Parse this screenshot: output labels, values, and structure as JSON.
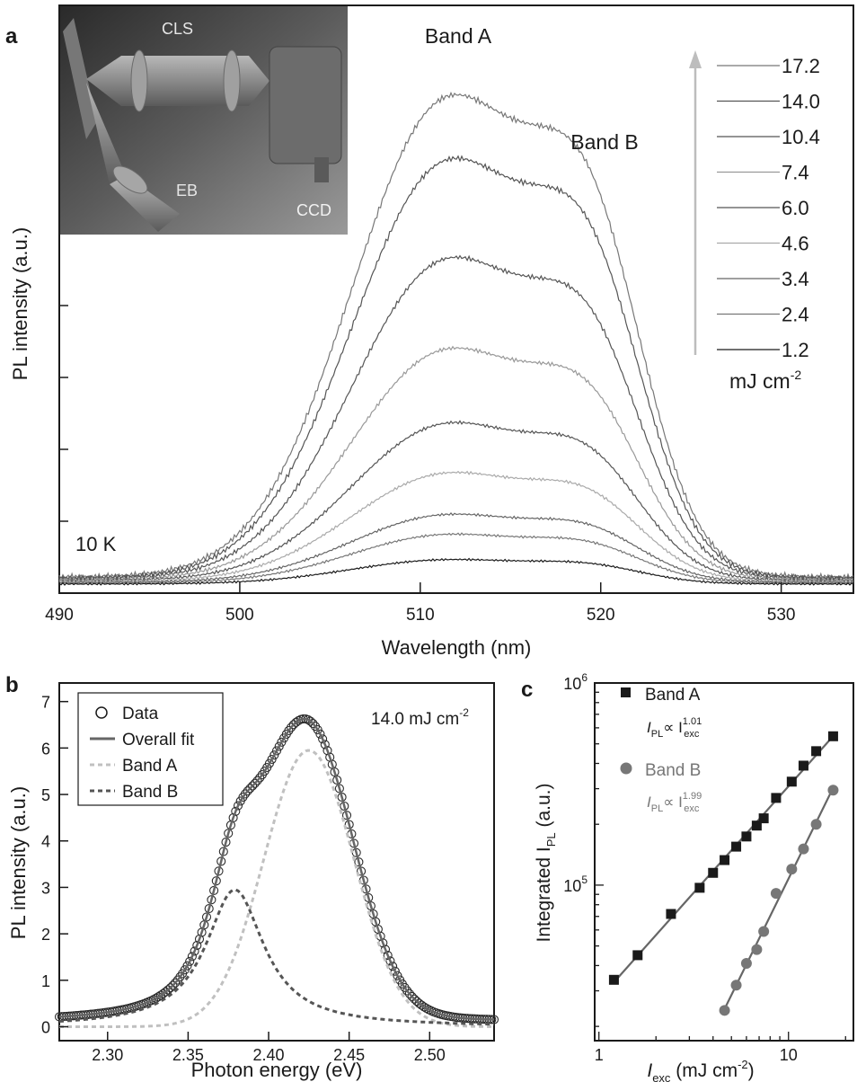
{
  "chart_data": [
    {
      "panel": "a",
      "type": "line",
      "xlabel": "Wavelength (nm)",
      "ylabel": "PL intensity (a.u.)",
      "xlim": [
        490,
        534
      ],
      "xticks": [
        490,
        500,
        510,
        520,
        530
      ],
      "temperature_label": "10 K",
      "band_labels": [
        "Band A",
        "Band B"
      ],
      "legend_unit": "mJ cm",
      "legend_unit_sup": "-2",
      "series": [
        {
          "name": "17.2",
          "peak": 0.91,
          "color": "#777777"
        },
        {
          "name": "14.0",
          "peak": 0.795,
          "color": "#555555"
        },
        {
          "name": "10.4",
          "peak": 0.615,
          "color": "#555555"
        },
        {
          "name": "7.4",
          "peak": 0.45,
          "color": "#999999"
        },
        {
          "name": "6.0",
          "peak": 0.315,
          "color": "#555555"
        },
        {
          "name": "4.6",
          "peak": 0.225,
          "color": "#aaaaaa"
        },
        {
          "name": "3.4",
          "peak": 0.15,
          "color": "#666666"
        },
        {
          "name": "2.4",
          "peak": 0.115,
          "color": "#777777"
        },
        {
          "name": "1.2",
          "peak": 0.07,
          "color": "#1a1a1a"
        }
      ],
      "inset_labels": [
        "CLS",
        "EB",
        "CCD"
      ]
    },
    {
      "panel": "b",
      "type": "line",
      "annotation": "14.0 mJ cm",
      "annotation_sup": "-2",
      "xlabel": "Photon energy (eV)",
      "ylabel": "PL intensity (a.u.)",
      "xlim": [
        2.27,
        2.54
      ],
      "ylim": [
        -0.3,
        7.4
      ],
      "xticks": [
        "2.30",
        "2.35",
        "2.40",
        "2.45",
        "2.50"
      ],
      "yticks": [
        "0",
        "1",
        "2",
        "3",
        "4",
        "5",
        "6",
        "7"
      ],
      "legend": [
        "Data",
        "Overall fit",
        "Band A",
        "Band B"
      ],
      "band_a": {
        "center": 2.425,
        "sigma": 0.028,
        "amplitude": 5.95
      },
      "band_b": {
        "center": 2.379,
        "gamma": 0.022,
        "amplitude": 2.95
      }
    },
    {
      "panel": "c",
      "type": "scatter",
      "xlabel": "I",
      "xlabel_sub": "exc",
      "xlabel_rest": " (mJ cm",
      "xlabel_sup": "-2",
      "xlabel_close": ")",
      "ylabel": "Integrated I",
      "ylabel_sub": "PL",
      "ylabel_rest": " (a.u.)",
      "xscale": "log",
      "yscale": "log",
      "xlim": [
        0.95,
        22
      ],
      "ylim": [
        17000,
        1000000
      ],
      "xtick_labels": [
        {
          "value": 1,
          "label": "1"
        },
        {
          "value": 10,
          "label": "10"
        }
      ],
      "ytick_labels": [
        {
          "value": 100000,
          "base": "10",
          "exp": "5"
        },
        {
          "value": 1000000,
          "base": "10",
          "exp": "6"
        }
      ],
      "series": [
        {
          "name": "Band A",
          "marker": "square",
          "color": "#1a1a1a",
          "fit_prefix": "I",
          "fit_sub1": "PL",
          "fit_mid": "∝ I",
          "fit_exp": "1.01",
          "fit_sub2": "exc",
          "x": [
            1.2,
            1.6,
            2.4,
            3.4,
            4.0,
            4.6,
            5.3,
            6.0,
            6.8,
            7.4,
            8.6,
            10.4,
            12.0,
            14.0,
            17.2
          ],
          "y": [
            34000,
            45000,
            72000,
            97000,
            115000,
            133000,
            155000,
            174000,
            197000,
            214000,
            270000,
            325000,
            390000,
            460000,
            545000
          ]
        },
        {
          "name": "Band B",
          "marker": "circle",
          "color": "#777777",
          "fit_prefix": "I",
          "fit_sub1": "PL",
          "fit_mid": "∝ I",
          "fit_exp": "1.99",
          "fit_sub2": "exc",
          "x": [
            4.6,
            5.3,
            6.0,
            6.8,
            7.4,
            8.6,
            10.4,
            12.0,
            14.0,
            17.2
          ],
          "y": [
            24000,
            32000,
            41000,
            48000,
            59000,
            91000,
            120000,
            151000,
            200000,
            295000
          ]
        }
      ]
    }
  ],
  "panel_labels": [
    "a",
    "b",
    "c"
  ]
}
